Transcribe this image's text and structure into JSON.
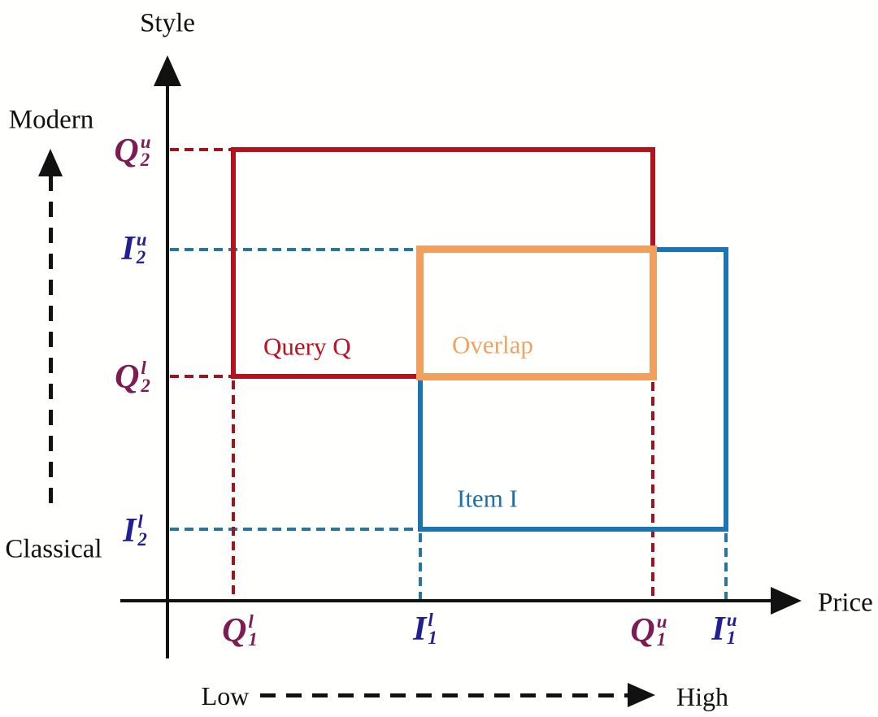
{
  "figure": {
    "description": "Rectangle-overlap diagram of a Query and an Item in Price-Style attribute space",
    "axes": {
      "y_title": "Style",
      "x_title": "Price",
      "y_high_end": "Modern",
      "y_low_end": "Classical",
      "x_low_end": "Low",
      "x_high_end": "High"
    },
    "rects": {
      "query": {
        "label": "Query Q"
      },
      "item": {
        "label": "Item I"
      },
      "overlap": {
        "label": "Overlap"
      }
    },
    "ticks": {
      "q2u": {
        "base": "Q",
        "sub": "2",
        "sup": "u"
      },
      "i2u": {
        "base": "I",
        "sub": "2",
        "sup": "u"
      },
      "q2l": {
        "base": "Q",
        "sub": "2",
        "sup": "l"
      },
      "i2l": {
        "base": "I",
        "sub": "2",
        "sup": "l"
      },
      "q1l": {
        "base": "Q",
        "sub": "1",
        "sup": "l"
      },
      "i1l": {
        "base": "I",
        "sub": "1",
        "sup": "l"
      },
      "q1u": {
        "base": "Q",
        "sub": "1",
        "sup": "u"
      },
      "i1u": {
        "base": "I",
        "sub": "1",
        "sup": "u"
      }
    },
    "colors": {
      "query_rect": "#B4121C",
      "query_label": "#BE1020",
      "query_tick": "#7D1C52",
      "query_dash": "#A3131F",
      "item_rect": "#1B74B4",
      "item_label": "#1D6FA8",
      "item_tick": "#201F96",
      "item_dash": "#2575A8",
      "overlap_rect": "#F0A05C",
      "overlap_label": "#EFA55F",
      "axis": "#111111"
    }
  }
}
